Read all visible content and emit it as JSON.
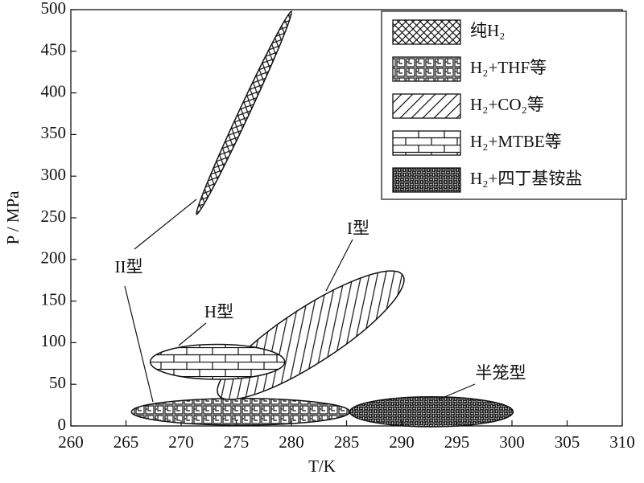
{
  "chart_data": {
    "type": "region",
    "xlabel": "T/K",
    "ylabel": "P / MPa",
    "xlim": [
      260,
      310
    ],
    "xticks": [
      260,
      265,
      270,
      275,
      280,
      285,
      290,
      295,
      300,
      305,
      310
    ],
    "ylim": [
      0,
      500
    ],
    "yticks": [
      0,
      50,
      100,
      150,
      200,
      250,
      300,
      350,
      400,
      450,
      500
    ],
    "legend": "upper right",
    "series": [
      {
        "name": "纯H₂",
        "pattern": "crosshatch",
        "major": [
          [
            271.4,
            254
          ],
          [
            280,
            498
          ]
        ],
        "minor": [
          276.4,
          381
        ]
      },
      {
        "name": "H₂+THF等",
        "pattern": "block",
        "major": [
          [
            265.5,
            17
          ],
          [
            285.3,
            17
          ]
        ],
        "minor": [
          275.4,
          33
        ]
      },
      {
        "name": "H₂+CO₂等",
        "pattern": "diagonal",
        "major": [
          [
            273.4,
            37
          ],
          [
            290.1,
            181
          ]
        ],
        "minor": [
          283.1,
          81
        ]
      },
      {
        "name": "H₂+MTBE等",
        "pattern": "brick",
        "major": [
          [
            267.2,
            77
          ],
          [
            279.4,
            77
          ]
        ],
        "minor": [
          273.3,
          98
        ]
      },
      {
        "name": "H₂+四丁基铵盐",
        "pattern": "dark",
        "major": [
          [
            285.3,
            17
          ],
          [
            300.1,
            17
          ]
        ],
        "minor": [
          292.7,
          35
        ]
      }
    ],
    "annotations": [
      "II型",
      "I型",
      "H型",
      "半笼型"
    ]
  }
}
